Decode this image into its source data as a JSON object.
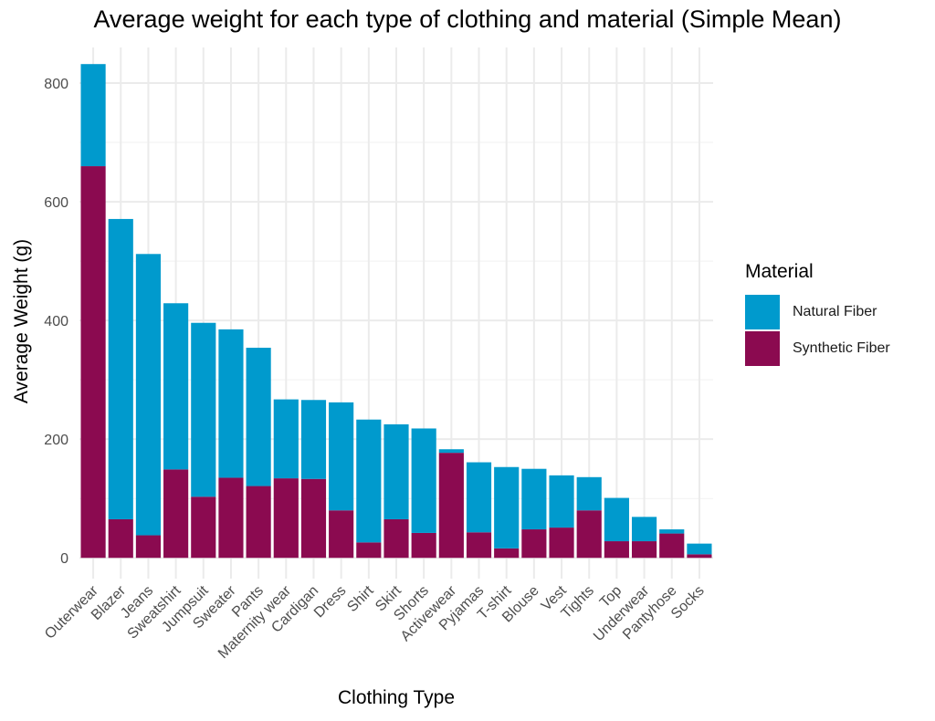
{
  "chart_data": {
    "type": "bar",
    "stacked": true,
    "title": "Average weight for each type of clothing and material (Simple Mean)",
    "xlabel": "Clothing Type",
    "ylabel": "Average Weight (g)",
    "ylim": [
      -35,
      860
    ],
    "yticks": [
      "0",
      "200",
      "400",
      "600",
      "800"
    ],
    "grid": "on",
    "legend_position": "right",
    "legend_title": "Material",
    "categories": [
      "Outerwear",
      "Blazer",
      "Jeans",
      "Sweatshirt",
      "Jumpsuit",
      "Sweater",
      "Pants",
      "Maternity wear",
      "Cardigan",
      "Dress",
      "Shirt",
      "Skirt",
      "Shorts",
      "Activewear",
      "Pyjamas",
      "T-shirt",
      "Blouse",
      "Vest",
      "Tights",
      "Top",
      "Underwear",
      "Pantyhose",
      "Socks"
    ],
    "series": [
      {
        "name": "Synthetic Fiber",
        "color": "#8B0A50",
        "values": [
          660,
          65,
          38,
          149,
          103,
          135,
          121,
          134,
          133,
          80,
          26,
          65,
          42,
          177,
          43,
          16,
          48,
          51,
          80,
          28,
          28,
          41,
          6
        ]
      },
      {
        "name": "Natural Fiber",
        "color": "#009ACD",
        "values": [
          172,
          506,
          474,
          280,
          293,
          250,
          233,
          133,
          133,
          182,
          207,
          160,
          176,
          6,
          118,
          137,
          102,
          88,
          56,
          73,
          41,
          7,
          18
        ]
      }
    ]
  }
}
